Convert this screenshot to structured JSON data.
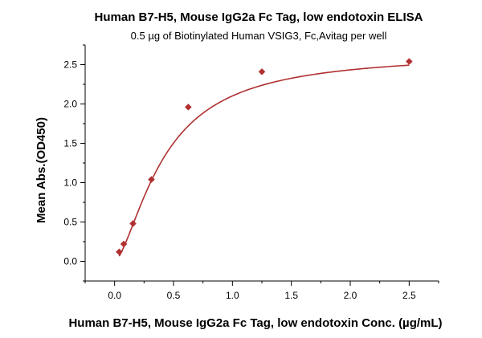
{
  "chart_data": {
    "type": "scatter",
    "title": "Human B7-H5, Mouse IgG2a Fc Tag, low endotoxin ELISA",
    "subtitle": "0.5 µg of Biotinylated Human VSIG3, Fc,Avitag per well",
    "xlabel": "Human B7-H5, Mouse IgG2a Fc Tag, low endotoxin Conc. (µg/mL)",
    "ylabel": "Mean Abs.(OD450)",
    "xlim": [
      -0.25,
      2.75
    ],
    "ylim": [
      -0.25,
      2.75
    ],
    "x_ticks": [
      0.0,
      0.5,
      1.0,
      1.5,
      2.0,
      2.5
    ],
    "x_tick_labels": [
      "0.0",
      "0.5",
      "1.0",
      "1.5",
      "2.0",
      "2.5"
    ],
    "y_ticks": [
      0.0,
      0.5,
      1.0,
      1.5,
      2.0,
      2.5
    ],
    "y_tick_labels": [
      "0.0",
      "0.5",
      "1.0",
      "1.5",
      "2.0",
      "2.5"
    ],
    "grid": false,
    "legend": "none",
    "series": [
      {
        "x": [
          0.039,
          0.078,
          0.156,
          0.3125,
          0.625,
          1.25,
          2.5
        ],
        "y": [
          0.12,
          0.22,
          0.48,
          1.04,
          1.96,
          2.41,
          2.54
        ],
        "color": "#b03030",
        "marker": "diamond",
        "fit": "sigmoidal curve"
      }
    ]
  }
}
